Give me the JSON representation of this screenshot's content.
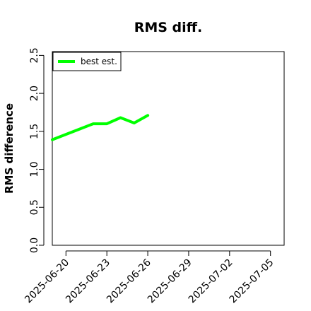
{
  "chart_data": {
    "type": "line",
    "title": "RMS diff.",
    "xlabel": "",
    "ylabel": "RMS difference",
    "x_type": "date",
    "xlim": [
      "2025-06-19",
      "2025-07-06"
    ],
    "ylim": [
      0.0,
      2.55
    ],
    "x_ticks": [
      "2025-06-20",
      "2025-06-23",
      "2025-06-26",
      "2025-06-29",
      "2025-07-02",
      "2025-07-05"
    ],
    "y_ticks": [
      "0.0",
      "0.5",
      "1.0",
      "1.5",
      "2.0",
      "2.5"
    ],
    "y_tick_values": [
      0.0,
      0.5,
      1.0,
      1.5,
      2.0,
      2.5
    ],
    "grid": false,
    "legend_position": "top-left",
    "series": [
      {
        "name": "best est.",
        "color": "#00ff00",
        "x": [
          "2025-06-19",
          "2025-06-20",
          "2025-06-21",
          "2025-06-22",
          "2025-06-23",
          "2025-06-24",
          "2025-06-25",
          "2025-06-26"
        ],
        "values": [
          1.39,
          1.46,
          1.53,
          1.6,
          1.6,
          1.68,
          1.61,
          1.71
        ]
      }
    ]
  }
}
